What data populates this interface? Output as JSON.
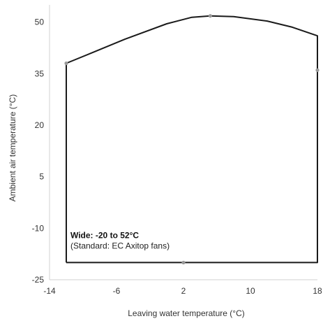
{
  "chart_data": {
    "type": "line",
    "title": "",
    "xlabel": "Leaving water temperature (°C)",
    "ylabel": "Ambient air temperature (°C)",
    "xlim": [
      -14,
      18
    ],
    "ylim": [
      -25,
      55
    ],
    "x_ticks": [
      -14,
      -6,
      2,
      10,
      18
    ],
    "y_ticks": [
      50,
      35,
      20,
      5,
      -10,
      -25
    ],
    "x_tick_labels": [
      "-14",
      "-6",
      "2",
      "10",
      "18"
    ],
    "y_tick_labels": [
      "50",
      "35",
      "20",
      "5",
      "-10",
      "-25"
    ],
    "grid": false,
    "series": [
      {
        "color": "#1a1a1a",
        "points": [
          [
            -12,
            -20
          ],
          [
            -12,
            38
          ],
          [
            -9,
            41
          ],
          [
            -5,
            45
          ],
          [
            0,
            49.5
          ],
          [
            3,
            51.4
          ],
          [
            5.2,
            51.8
          ],
          [
            8,
            51.6
          ],
          [
            12,
            50.3
          ],
          [
            15,
            48.5
          ],
          [
            18,
            46
          ],
          [
            18,
            -20
          ],
          [
            -12,
            -20
          ]
        ]
      }
    ],
    "markers": {
      "color": "#999999",
      "points": [
        [
          -12,
          38
        ],
        [
          5.2,
          51.8
        ],
        [
          18,
          36
        ],
        [
          2,
          -20
        ]
      ]
    },
    "annotation": {
      "title": "Wide: -20 to 52°C",
      "subtitle": "(Standard: EC Axitop fans)",
      "x": -11.5,
      "y": -17
    }
  }
}
